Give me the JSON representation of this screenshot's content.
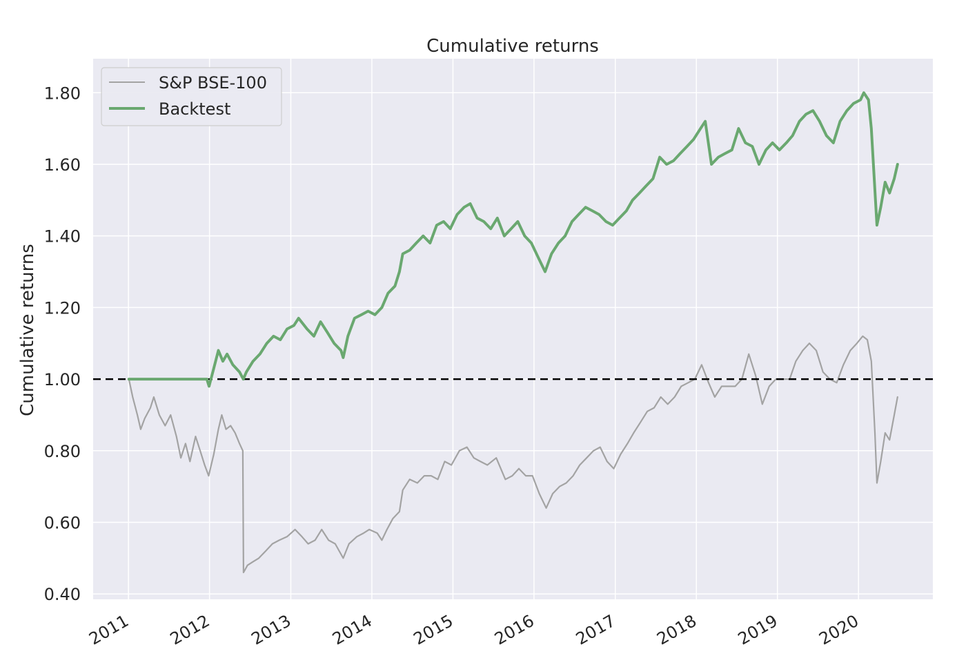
{
  "chart_data": {
    "type": "line",
    "title": "Cumulative returns",
    "xlabel": "",
    "ylabel": "Cumulative returns",
    "xlim": [
      "2010-07-26",
      "2020-12-01"
    ],
    "ylim": [
      0.385,
      1.895
    ],
    "y_ticks": [
      0.4,
      0.6,
      0.8,
      1.0,
      1.2,
      1.4,
      1.6,
      1.8
    ],
    "y_tick_labels": [
      "0.40",
      "0.60",
      "0.80",
      "1.00",
      "1.20",
      "1.40",
      "1.60",
      "1.80"
    ],
    "x_ticks": [
      "2011-01-01",
      "2012-01-01",
      "2013-01-01",
      "2014-01-01",
      "2015-01-01",
      "2016-01-01",
      "2017-01-01",
      "2018-01-01",
      "2019-01-01",
      "2020-01-01"
    ],
    "x_tick_labels": [
      "2011",
      "2012",
      "2013",
      "2014",
      "2015",
      "2016",
      "2017",
      "2018",
      "2019",
      "2020"
    ],
    "grid": true,
    "legend_position": "top-left",
    "reference_line": {
      "y": 1.0,
      "style": "dashed",
      "color": "#000000"
    },
    "series": [
      {
        "name": "S&P BSE-100",
        "color": "#a3a3a3",
        "points": [
          [
            "2011-01-03",
            1.0
          ],
          [
            "2011-01-20",
            0.95
          ],
          [
            "2011-02-10",
            0.9
          ],
          [
            "2011-02-25",
            0.86
          ],
          [
            "2011-03-15",
            0.89
          ],
          [
            "2011-04-10",
            0.92
          ],
          [
            "2011-04-25",
            0.95
          ],
          [
            "2011-05-20",
            0.9
          ],
          [
            "2011-06-15",
            0.87
          ],
          [
            "2011-07-10",
            0.9
          ],
          [
            "2011-08-05",
            0.84
          ],
          [
            "2011-08-25",
            0.78
          ],
          [
            "2011-09-15",
            0.82
          ],
          [
            "2011-10-05",
            0.77
          ],
          [
            "2011-10-30",
            0.84
          ],
          [
            "2011-11-20",
            0.8
          ],
          [
            "2011-12-10",
            0.76
          ],
          [
            "2011-12-28",
            0.73
          ],
          [
            "2012-01-20",
            0.79
          ],
          [
            "2012-02-10",
            0.86
          ],
          [
            "2012-02-25",
            0.9
          ],
          [
            "2012-03-15",
            0.86
          ],
          [
            "2012-04-05",
            0.87
          ],
          [
            "2012-04-25",
            0.85
          ],
          [
            "2012-05-15",
            0.82
          ],
          [
            "2012-05-30",
            0.8
          ],
          [
            "2012-06-02",
            0.46
          ],
          [
            "2012-06-20",
            0.48
          ],
          [
            "2012-07-15",
            0.49
          ],
          [
            "2012-08-10",
            0.5
          ],
          [
            "2012-09-10",
            0.52
          ],
          [
            "2012-10-10",
            0.54
          ],
          [
            "2012-11-10",
            0.55
          ],
          [
            "2012-12-15",
            0.56
          ],
          [
            "2013-01-20",
            0.58
          ],
          [
            "2013-02-20",
            0.56
          ],
          [
            "2013-03-20",
            0.54
          ],
          [
            "2013-04-20",
            0.55
          ],
          [
            "2013-05-20",
            0.58
          ],
          [
            "2013-06-20",
            0.55
          ],
          [
            "2013-07-20",
            0.54
          ],
          [
            "2013-08-25",
            0.5
          ],
          [
            "2013-09-20",
            0.54
          ],
          [
            "2013-10-25",
            0.56
          ],
          [
            "2013-11-25",
            0.57
          ],
          [
            "2013-12-20",
            0.58
          ],
          [
            "2014-01-25",
            0.57
          ],
          [
            "2014-02-15",
            0.55
          ],
          [
            "2014-03-10",
            0.58
          ],
          [
            "2014-04-05",
            0.61
          ],
          [
            "2014-05-05",
            0.63
          ],
          [
            "2014-05-20",
            0.69
          ],
          [
            "2014-06-20",
            0.72
          ],
          [
            "2014-07-25",
            0.71
          ],
          [
            "2014-08-25",
            0.73
          ],
          [
            "2014-09-25",
            0.73
          ],
          [
            "2014-10-25",
            0.72
          ],
          [
            "2014-11-25",
            0.77
          ],
          [
            "2014-12-25",
            0.76
          ],
          [
            "2015-01-30",
            0.8
          ],
          [
            "2015-03-05",
            0.81
          ],
          [
            "2015-04-05",
            0.78
          ],
          [
            "2015-05-05",
            0.77
          ],
          [
            "2015-06-05",
            0.76
          ],
          [
            "2015-07-15",
            0.78
          ],
          [
            "2015-08-25",
            0.72
          ],
          [
            "2015-09-25",
            0.73
          ],
          [
            "2015-10-25",
            0.75
          ],
          [
            "2015-11-25",
            0.73
          ],
          [
            "2015-12-25",
            0.73
          ],
          [
            "2016-01-25",
            0.68
          ],
          [
            "2016-02-25",
            0.64
          ],
          [
            "2016-03-25",
            0.68
          ],
          [
            "2016-04-25",
            0.7
          ],
          [
            "2016-05-25",
            0.71
          ],
          [
            "2016-06-25",
            0.73
          ],
          [
            "2016-07-25",
            0.76
          ],
          [
            "2016-08-25",
            0.78
          ],
          [
            "2016-09-25",
            0.8
          ],
          [
            "2016-10-25",
            0.81
          ],
          [
            "2016-11-25",
            0.77
          ],
          [
            "2016-12-25",
            0.75
          ],
          [
            "2017-01-25",
            0.79
          ],
          [
            "2017-02-25",
            0.82
          ],
          [
            "2017-03-25",
            0.85
          ],
          [
            "2017-04-25",
            0.88
          ],
          [
            "2017-05-25",
            0.91
          ],
          [
            "2017-06-25",
            0.92
          ],
          [
            "2017-07-25",
            0.95
          ],
          [
            "2017-08-25",
            0.93
          ],
          [
            "2017-09-25",
            0.95
          ],
          [
            "2017-10-25",
            0.98
          ],
          [
            "2017-11-25",
            0.99
          ],
          [
            "2017-12-25",
            1.0
          ],
          [
            "2018-01-25",
            1.04
          ],
          [
            "2018-02-25",
            0.99
          ],
          [
            "2018-03-25",
            0.95
          ],
          [
            "2018-04-25",
            0.98
          ],
          [
            "2018-05-25",
            0.98
          ],
          [
            "2018-06-25",
            0.98
          ],
          [
            "2018-07-25",
            1.0
          ],
          [
            "2018-08-25",
            1.07
          ],
          [
            "2018-09-25",
            1.01
          ],
          [
            "2018-10-25",
            0.93
          ],
          [
            "2018-11-25",
            0.98
          ],
          [
            "2018-12-25",
            1.0
          ],
          [
            "2019-01-25",
            1.0
          ],
          [
            "2019-02-25",
            1.0
          ],
          [
            "2019-03-25",
            1.05
          ],
          [
            "2019-04-25",
            1.08
          ],
          [
            "2019-05-25",
            1.1
          ],
          [
            "2019-06-25",
            1.08
          ],
          [
            "2019-07-25",
            1.02
          ],
          [
            "2019-08-25",
            1.0
          ],
          [
            "2019-09-25",
            0.99
          ],
          [
            "2019-10-25",
            1.04
          ],
          [
            "2019-11-25",
            1.08
          ],
          [
            "2019-12-25",
            1.1
          ],
          [
            "2020-01-20",
            1.12
          ],
          [
            "2020-02-10",
            1.11
          ],
          [
            "2020-02-28",
            1.05
          ],
          [
            "2020-03-15",
            0.85
          ],
          [
            "2020-03-24",
            0.71
          ],
          [
            "2020-04-10",
            0.77
          ],
          [
            "2020-04-30",
            0.85
          ],
          [
            "2020-05-20",
            0.83
          ],
          [
            "2020-06-10",
            0.9
          ],
          [
            "2020-06-25",
            0.95
          ]
        ]
      },
      {
        "name": "Backtest",
        "color": "#6aa870",
        "points": [
          [
            "2011-01-03",
            1.0
          ],
          [
            "2011-06-01",
            1.0
          ],
          [
            "2011-12-20",
            1.0
          ],
          [
            "2011-12-30",
            0.98
          ],
          [
            "2012-01-20",
            1.03
          ],
          [
            "2012-02-10",
            1.08
          ],
          [
            "2012-03-01",
            1.05
          ],
          [
            "2012-03-20",
            1.07
          ],
          [
            "2012-04-15",
            1.04
          ],
          [
            "2012-05-15",
            1.02
          ],
          [
            "2012-06-01",
            1.0
          ],
          [
            "2012-06-15",
            1.02
          ],
          [
            "2012-07-15",
            1.05
          ],
          [
            "2012-08-15",
            1.07
          ],
          [
            "2012-09-15",
            1.1
          ],
          [
            "2012-10-15",
            1.12
          ],
          [
            "2012-11-15",
            1.11
          ],
          [
            "2012-12-15",
            1.14
          ],
          [
            "2013-01-15",
            1.15
          ],
          [
            "2013-02-05",
            1.17
          ],
          [
            "2013-03-15",
            1.14
          ],
          [
            "2013-04-15",
            1.12
          ],
          [
            "2013-05-15",
            1.16
          ],
          [
            "2013-06-15",
            1.13
          ],
          [
            "2013-07-15",
            1.1
          ],
          [
            "2013-08-15",
            1.08
          ],
          [
            "2013-08-25",
            1.06
          ],
          [
            "2013-09-15",
            1.12
          ],
          [
            "2013-10-15",
            1.17
          ],
          [
            "2013-11-15",
            1.18
          ],
          [
            "2013-12-15",
            1.19
          ],
          [
            "2014-01-15",
            1.18
          ],
          [
            "2014-02-15",
            1.2
          ],
          [
            "2014-03-15",
            1.24
          ],
          [
            "2014-04-15",
            1.26
          ],
          [
            "2014-05-05",
            1.3
          ],
          [
            "2014-05-20",
            1.35
          ],
          [
            "2014-06-20",
            1.36
          ],
          [
            "2014-07-20",
            1.38
          ],
          [
            "2014-08-20",
            1.4
          ],
          [
            "2014-09-20",
            1.38
          ],
          [
            "2014-10-20",
            1.43
          ],
          [
            "2014-11-20",
            1.44
          ],
          [
            "2014-12-20",
            1.42
          ],
          [
            "2015-01-20",
            1.46
          ],
          [
            "2015-02-20",
            1.48
          ],
          [
            "2015-03-20",
            1.49
          ],
          [
            "2015-04-20",
            1.45
          ],
          [
            "2015-05-20",
            1.44
          ],
          [
            "2015-06-20",
            1.42
          ],
          [
            "2015-07-20",
            1.45
          ],
          [
            "2015-08-20",
            1.4
          ],
          [
            "2015-09-20",
            1.42
          ],
          [
            "2015-10-20",
            1.44
          ],
          [
            "2015-11-20",
            1.4
          ],
          [
            "2015-12-20",
            1.38
          ],
          [
            "2016-01-20",
            1.34
          ],
          [
            "2016-02-20",
            1.3
          ],
          [
            "2016-03-20",
            1.35
          ],
          [
            "2016-04-20",
            1.38
          ],
          [
            "2016-05-20",
            1.4
          ],
          [
            "2016-06-20",
            1.44
          ],
          [
            "2016-07-20",
            1.46
          ],
          [
            "2016-08-20",
            1.48
          ],
          [
            "2016-09-20",
            1.47
          ],
          [
            "2016-10-20",
            1.46
          ],
          [
            "2016-11-20",
            1.44
          ],
          [
            "2016-12-20",
            1.43
          ],
          [
            "2017-01-20",
            1.45
          ],
          [
            "2017-02-20",
            1.47
          ],
          [
            "2017-03-20",
            1.5
          ],
          [
            "2017-04-20",
            1.52
          ],
          [
            "2017-05-20",
            1.54
          ],
          [
            "2017-06-20",
            1.56
          ],
          [
            "2017-07-20",
            1.62
          ],
          [
            "2017-08-20",
            1.6
          ],
          [
            "2017-09-20",
            1.61
          ],
          [
            "2017-10-20",
            1.63
          ],
          [
            "2017-11-20",
            1.65
          ],
          [
            "2017-12-20",
            1.67
          ],
          [
            "2018-01-20",
            1.7
          ],
          [
            "2018-02-10",
            1.72
          ],
          [
            "2018-03-10",
            1.6
          ],
          [
            "2018-04-10",
            1.62
          ],
          [
            "2018-05-10",
            1.63
          ],
          [
            "2018-06-10",
            1.64
          ],
          [
            "2018-07-10",
            1.7
          ],
          [
            "2018-08-10",
            1.66
          ],
          [
            "2018-09-10",
            1.65
          ],
          [
            "2018-10-10",
            1.6
          ],
          [
            "2018-11-10",
            1.64
          ],
          [
            "2018-12-10",
            1.66
          ],
          [
            "2019-01-10",
            1.64
          ],
          [
            "2019-02-10",
            1.66
          ],
          [
            "2019-03-10",
            1.68
          ],
          [
            "2019-04-10",
            1.72
          ],
          [
            "2019-05-10",
            1.74
          ],
          [
            "2019-06-10",
            1.75
          ],
          [
            "2019-07-10",
            1.72
          ],
          [
            "2019-08-10",
            1.68
          ],
          [
            "2019-09-10",
            1.66
          ],
          [
            "2019-10-10",
            1.72
          ],
          [
            "2019-11-10",
            1.75
          ],
          [
            "2019-12-10",
            1.77
          ],
          [
            "2020-01-10",
            1.78
          ],
          [
            "2020-01-25",
            1.8
          ],
          [
            "2020-02-15",
            1.78
          ],
          [
            "2020-02-28",
            1.7
          ],
          [
            "2020-03-10",
            1.58
          ],
          [
            "2020-03-24",
            1.43
          ],
          [
            "2020-04-10",
            1.48
          ],
          [
            "2020-04-30",
            1.55
          ],
          [
            "2020-05-20",
            1.52
          ],
          [
            "2020-06-10",
            1.56
          ],
          [
            "2020-06-25",
            1.6
          ]
        ]
      }
    ]
  }
}
